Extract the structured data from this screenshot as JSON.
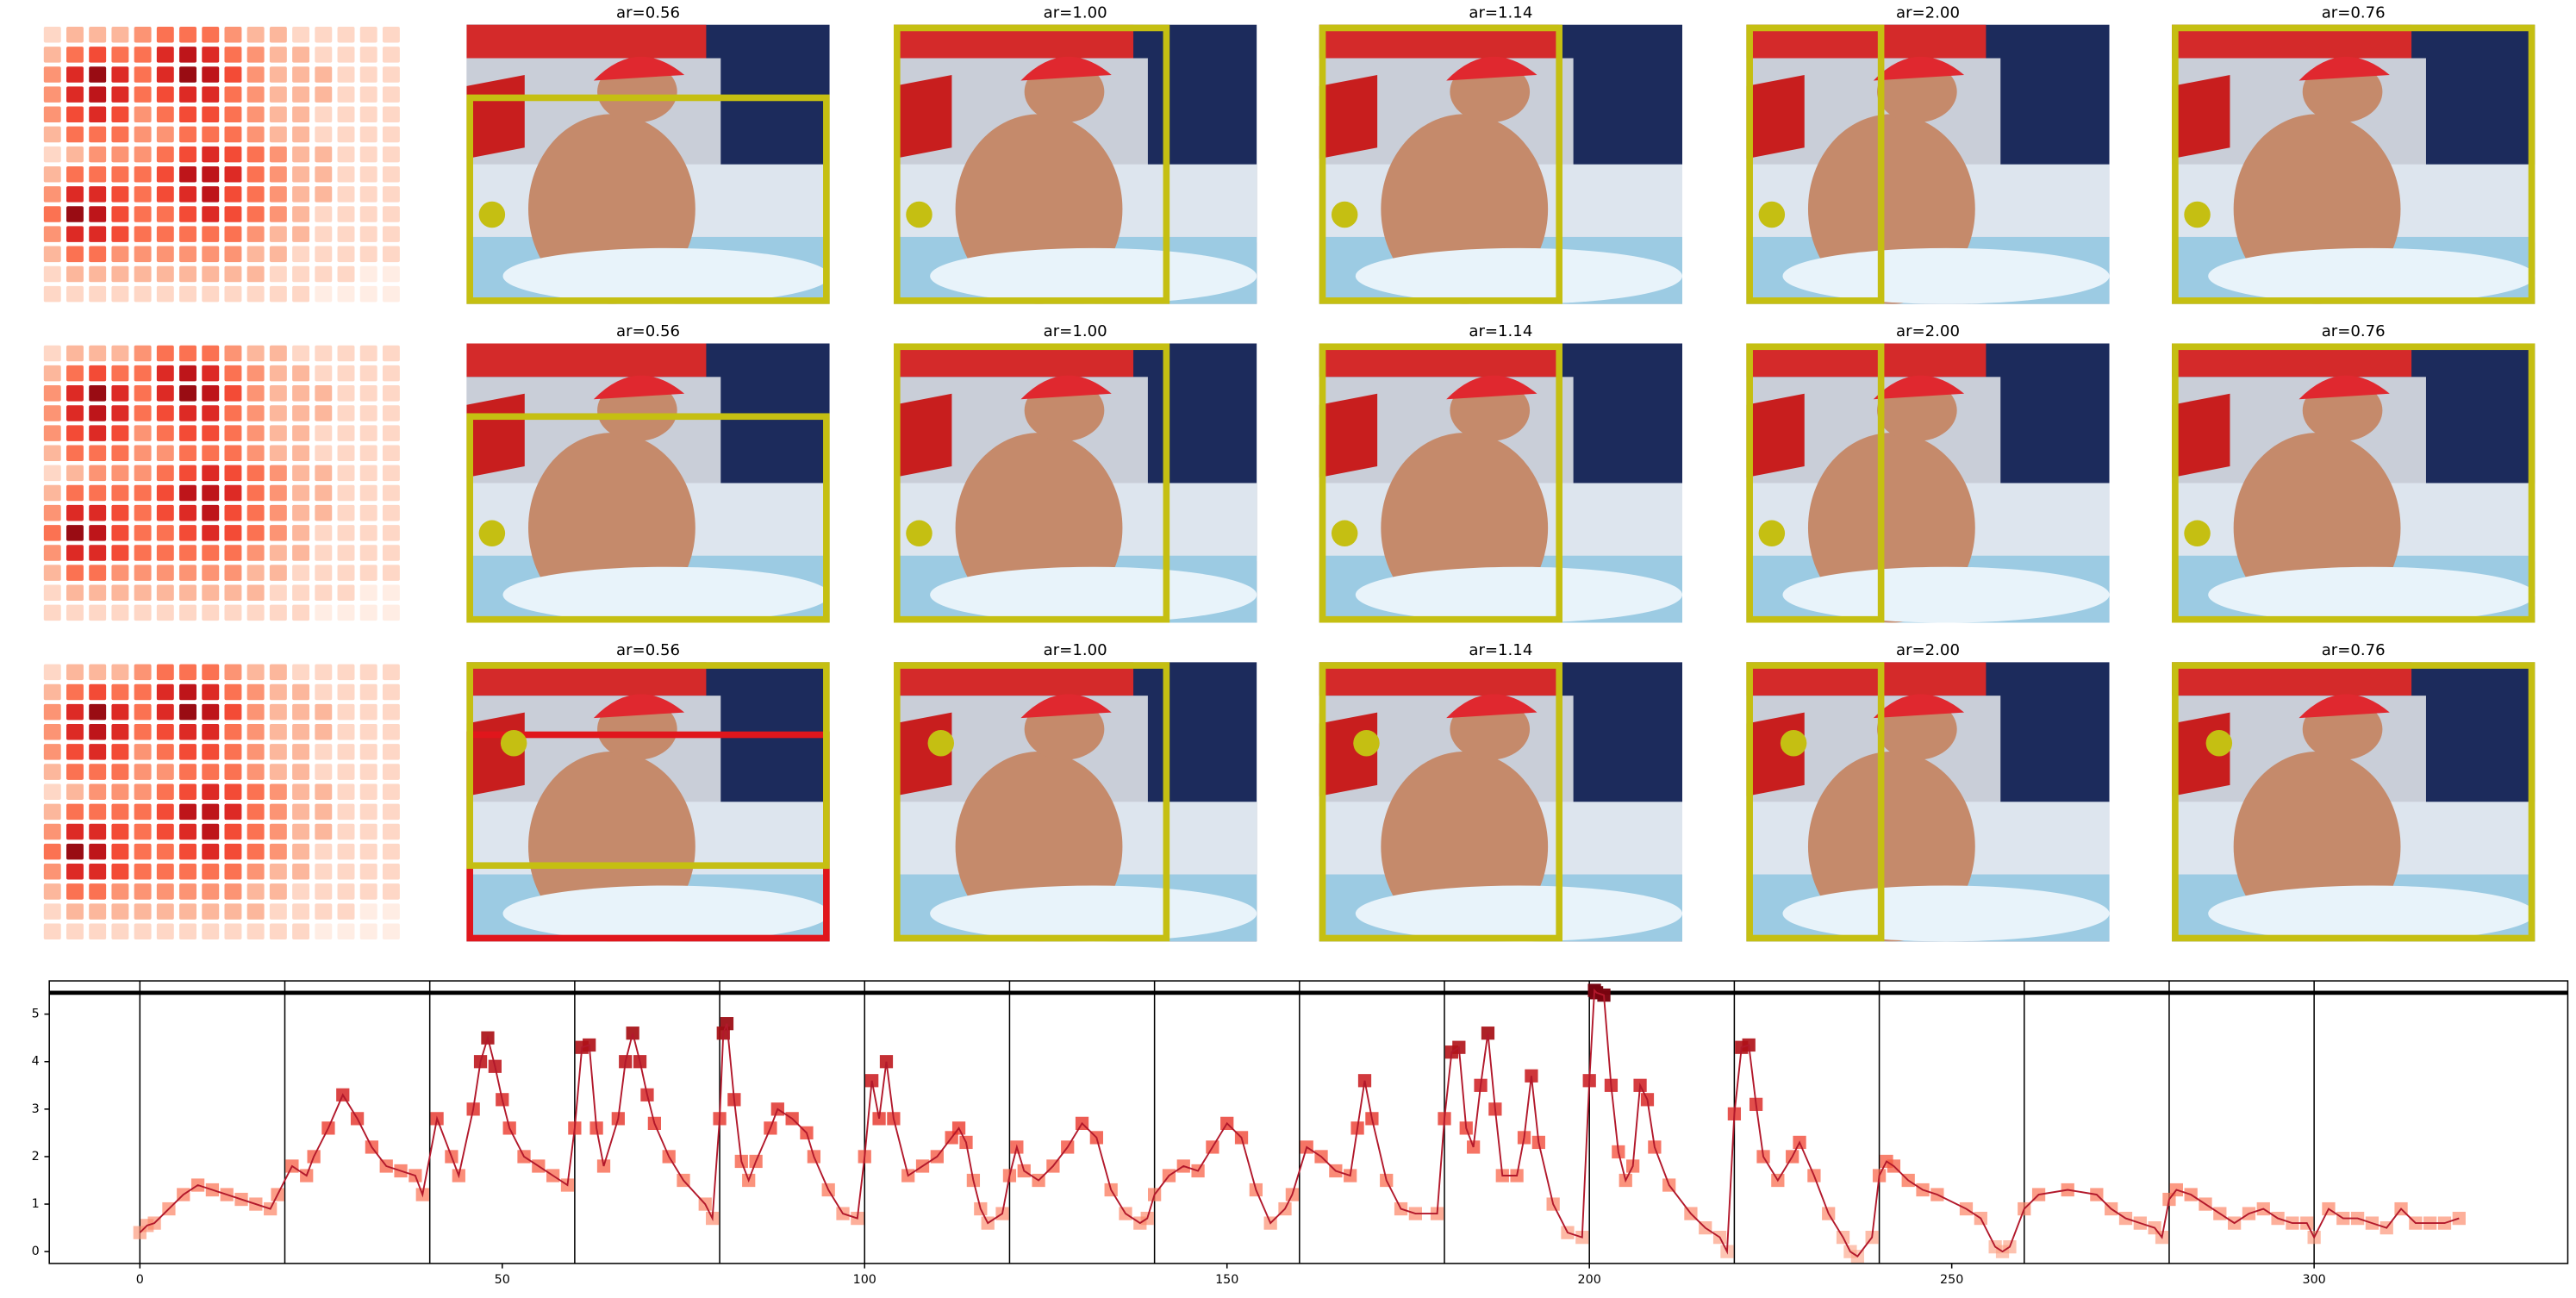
{
  "panel_rows": [
    {
      "titles": [
        "ar=0.56",
        "ar=1.00",
        "ar=1.14",
        "ar=2.00",
        "ar=0.76"
      ]
    },
    {
      "titles": [
        "ar=0.56",
        "ar=1.00",
        "ar=1.14",
        "ar=2.00",
        "ar=0.76"
      ]
    },
    {
      "titles": [
        "ar=0.56",
        "ar=1.00",
        "ar=1.14",
        "ar=2.00",
        "ar=0.76"
      ]
    }
  ],
  "heatmap": [
    [
      1,
      2,
      2,
      2,
      3,
      4,
      4,
      4,
      3,
      2,
      2,
      1,
      1,
      1,
      1,
      1
    ],
    [
      2,
      4,
      5,
      4,
      4,
      6,
      7,
      6,
      4,
      3,
      2,
      2,
      1,
      1,
      1,
      1
    ],
    [
      3,
      6,
      8,
      6,
      4,
      6,
      8,
      7,
      5,
      3,
      2,
      2,
      2,
      1,
      1,
      1
    ],
    [
      3,
      6,
      7,
      6,
      4,
      5,
      6,
      6,
      4,
      3,
      2,
      2,
      2,
      1,
      1,
      1
    ],
    [
      3,
      5,
      6,
      5,
      3,
      4,
      5,
      5,
      4,
      3,
      2,
      2,
      1,
      1,
      1,
      1
    ],
    [
      2,
      4,
      4,
      4,
      3,
      3,
      4,
      4,
      4,
      3,
      2,
      2,
      1,
      1,
      1,
      1
    ],
    [
      1,
      2,
      3,
      3,
      3,
      4,
      5,
      6,
      5,
      4,
      3,
      2,
      2,
      1,
      1,
      1
    ],
    [
      2,
      4,
      4,
      4,
      4,
      5,
      7,
      7,
      6,
      4,
      3,
      2,
      2,
      1,
      1,
      1
    ],
    [
      3,
      6,
      6,
      5,
      4,
      5,
      6,
      7,
      5,
      4,
      3,
      2,
      2,
      1,
      1,
      1
    ],
    [
      4,
      8,
      7,
      5,
      4,
      4,
      5,
      6,
      5,
      4,
      3,
      2,
      1,
      1,
      1,
      1
    ],
    [
      3,
      6,
      6,
      5,
      4,
      4,
      4,
      4,
      4,
      3,
      2,
      2,
      1,
      1,
      1,
      1
    ],
    [
      2,
      4,
      4,
      3,
      3,
      3,
      3,
      3,
      3,
      2,
      2,
      1,
      1,
      1,
      1,
      1
    ],
    [
      1,
      2,
      2,
      2,
      2,
      2,
      2,
      2,
      2,
      2,
      1,
      1,
      1,
      1,
      0,
      0
    ],
    [
      1,
      1,
      1,
      1,
      1,
      1,
      1,
      1,
      1,
      1,
      1,
      1,
      0,
      0,
      0,
      0
    ]
  ],
  "heatmap_colormap": "Reds",
  "chart_data": {
    "type": "line",
    "x": [
      0,
      1,
      2,
      4,
      6,
      8,
      10,
      12,
      14,
      16,
      18,
      19,
      21,
      23,
      24,
      26,
      28,
      30,
      32,
      34,
      36,
      38,
      39,
      41,
      43,
      44,
      46,
      47,
      48,
      49,
      50,
      51,
      53,
      55,
      57,
      59,
      60,
      61,
      62,
      63,
      64,
      66,
      67,
      68,
      69,
      70,
      71,
      73,
      75,
      78,
      79,
      80,
      80.5,
      81,
      82,
      83,
      84,
      85,
      87,
      88,
      90,
      92,
      93,
      95,
      97,
      99,
      100,
      101,
      102,
      103,
      104,
      106,
      108,
      110,
      112,
      113,
      114,
      115,
      116,
      117,
      119,
      120,
      121,
      122,
      124,
      126,
      128,
      130,
      132,
      134,
      136,
      138,
      139,
      140,
      142,
      144,
      146,
      148,
      150,
      152,
      154,
      156,
      158,
      159,
      161,
      163,
      165,
      167,
      168,
      169,
      170,
      172,
      174,
      176,
      179,
      180,
      181,
      182,
      183,
      184,
      185,
      186,
      187,
      188,
      190,
      191,
      192,
      193,
      195,
      197,
      199,
      200,
      200.7,
      201,
      202,
      203,
      204,
      205,
      206,
      207,
      208,
      209,
      211,
      214,
      216,
      218,
      219,
      220,
      221,
      222,
      223,
      224,
      226,
      228,
      229,
      231,
      233,
      235,
      236,
      237,
      239,
      240,
      241,
      242,
      244,
      246,
      248,
      252,
      254,
      256,
      257,
      258,
      260,
      262,
      266,
      270,
      272,
      274,
      276,
      278,
      279,
      280,
      281,
      283,
      285,
      287,
      289,
      291,
      293,
      295,
      297,
      299,
      300,
      302,
      304,
      306,
      308,
      310,
      312,
      314,
      316,
      318,
      320
    ],
    "values": [
      0.4,
      0.55,
      0.6,
      0.9,
      1.2,
      1.4,
      1.3,
      1.2,
      1.1,
      1.0,
      0.9,
      1.2,
      1.8,
      1.6,
      2.0,
      2.6,
      3.3,
      2.8,
      2.2,
      1.8,
      1.7,
      1.6,
      1.2,
      2.8,
      2.0,
      1.6,
      3.0,
      4.0,
      4.5,
      3.9,
      3.2,
      2.6,
      2.0,
      1.8,
      1.6,
      1.4,
      2.6,
      4.3,
      4.35,
      2.6,
      1.8,
      2.8,
      4.0,
      4.6,
      4.0,
      3.3,
      2.7,
      2.0,
      1.5,
      1.0,
      0.7,
      2.8,
      4.6,
      4.8,
      3.2,
      1.9,
      1.5,
      1.9,
      2.6,
      3.0,
      2.8,
      2.5,
      2.0,
      1.3,
      0.8,
      0.7,
      2.0,
      3.6,
      2.8,
      4.0,
      2.8,
      1.6,
      1.8,
      2.0,
      2.4,
      2.6,
      2.3,
      1.5,
      0.9,
      0.6,
      0.8,
      1.6,
      2.2,
      1.7,
      1.5,
      1.8,
      2.2,
      2.7,
      2.4,
      1.3,
      0.8,
      0.6,
      0.7,
      1.2,
      1.6,
      1.8,
      1.7,
      2.2,
      2.7,
      2.4,
      1.3,
      0.6,
      0.9,
      1.2,
      2.2,
      2.0,
      1.7,
      1.6,
      2.6,
      3.6,
      2.8,
      1.5,
      0.9,
      0.8,
      0.8,
      2.8,
      4.2,
      4.3,
      2.6,
      2.2,
      3.5,
      4.6,
      3.0,
      1.6,
      1.6,
      2.4,
      3.7,
      2.3,
      1.0,
      0.4,
      0.3,
      3.6,
      5.5,
      5.45,
      5.4,
      3.5,
      2.1,
      1.5,
      1.8,
      3.5,
      3.2,
      2.2,
      1.4,
      0.8,
      0.5,
      0.3,
      0.0,
      2.9,
      4.3,
      4.35,
      3.1,
      2.0,
      1.5,
      2.0,
      2.3,
      1.6,
      0.8,
      0.3,
      0.0,
      -0.1,
      0.3,
      1.6,
      1.9,
      1.8,
      1.5,
      1.3,
      1.2,
      0.9,
      0.7,
      0.1,
      0.0,
      0.1,
      0.9,
      1.2,
      1.3,
      1.2,
      0.9,
      0.7,
      0.6,
      0.5,
      0.3,
      1.1,
      1.3,
      1.2,
      1.0,
      0.8,
      0.6,
      0.8,
      0.9,
      0.7,
      0.6,
      0.6,
      0.3,
      0.9,
      0.7,
      0.7,
      0.6,
      0.5,
      0.9,
      0.6,
      0.6,
      0.6,
      0.7
    ],
    "color": "#b2182b",
    "marker_colormap": "Reds",
    "xlim": [
      -12.5,
      335
    ],
    "ylim": [
      -0.25,
      5.7
    ],
    "xticks": [
      0,
      50,
      100,
      150,
      200,
      250,
      300
    ],
    "yticks": [
      0,
      1,
      2,
      3,
      4,
      5
    ],
    "vlines": [
      0,
      20,
      40,
      60,
      80,
      100,
      120,
      140,
      160,
      180,
      200,
      220,
      240,
      260,
      280,
      300
    ],
    "hline": 5.45
  }
}
